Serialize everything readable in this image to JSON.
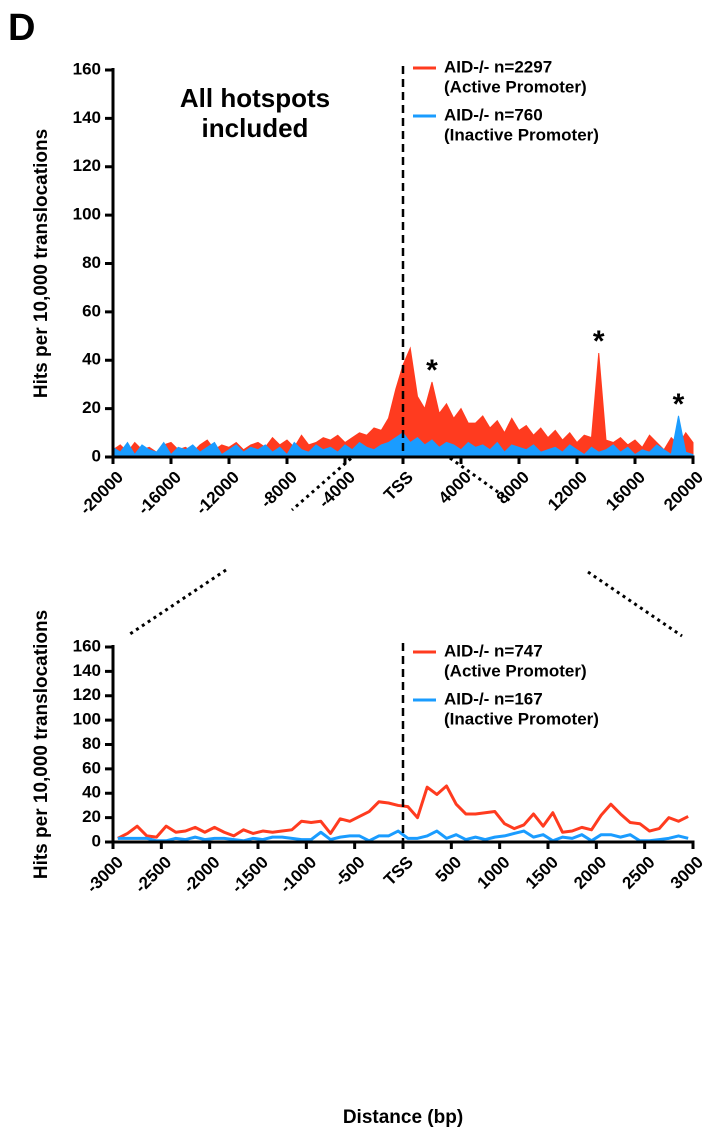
{
  "chart_data": [
    {
      "type": "area",
      "panel": "D",
      "annotation": [
        "All hotspots",
        "included"
      ],
      "ylabel": "Hits per 10,000 translocations",
      "x": [
        -20000,
        -19500,
        -19000,
        -18500,
        -18000,
        -17500,
        -17000,
        -16500,
        -16000,
        -15500,
        -15000,
        -14500,
        -14000,
        -13500,
        -13000,
        -12500,
        -12000,
        -11500,
        -11000,
        -10500,
        -10000,
        -9500,
        -9000,
        -8500,
        -8000,
        -7500,
        -7000,
        -6500,
        -6000,
        -5500,
        -5000,
        -4500,
        -4000,
        -3500,
        -3000,
        -2500,
        -2000,
        -1500,
        -1000,
        -500,
        0,
        500,
        1000,
        1500,
        2000,
        2500,
        3000,
        3500,
        4000,
        4500,
        5000,
        5500,
        6000,
        6500,
        7000,
        7500,
        8000,
        8500,
        9000,
        9500,
        10000,
        10500,
        11000,
        11500,
        12000,
        12500,
        13000,
        13500,
        14000,
        14500,
        15000,
        15500,
        16000,
        16500,
        17000,
        17500,
        18000,
        18500,
        19000,
        19500,
        20000
      ],
      "series": [
        {
          "name": [
            "AID-/- n=2297",
            "(Active Promoter)"
          ],
          "color": "#ff3b1f",
          "values": [
            3,
            5,
            2,
            6,
            3,
            4,
            2,
            5,
            6,
            3,
            4,
            2,
            5,
            7,
            3,
            5,
            4,
            6,
            3,
            5,
            6,
            4,
            8,
            5,
            7,
            4,
            9,
            5,
            6,
            8,
            7,
            9,
            6,
            8,
            10,
            9,
            12,
            11,
            16,
            28,
            38,
            45,
            25,
            20,
            31,
            18,
            22,
            16,
            20,
            14,
            14,
            17,
            12,
            15,
            10,
            16,
            11,
            13,
            9,
            12,
            8,
            11,
            7,
            10,
            6,
            9,
            8,
            43,
            7,
            6,
            8,
            5,
            7,
            4,
            9,
            6,
            3,
            8,
            5,
            10,
            6
          ]
        },
        {
          "name": [
            "AID-/- n=760",
            "(Inactive Promoter)"
          ],
          "color": "#1a9cff",
          "values": [
            4,
            2,
            6,
            1,
            5,
            3,
            2,
            6,
            1,
            4,
            3,
            5,
            2,
            4,
            6,
            1,
            3,
            5,
            2,
            4,
            3,
            5,
            2,
            4,
            1,
            6,
            3,
            2,
            5,
            3,
            4,
            2,
            5,
            3,
            6,
            4,
            3,
            5,
            6,
            8,
            10,
            6,
            8,
            5,
            7,
            4,
            6,
            5,
            3,
            6,
            4,
            5,
            3,
            6,
            2,
            5,
            4,
            3,
            5,
            2,
            3,
            4,
            2,
            5,
            3,
            1,
            4,
            2,
            3,
            5,
            2,
            4,
            1,
            3,
            2,
            5,
            3,
            1,
            17,
            2,
            1
          ]
        }
      ],
      "marks": [
        {
          "text": "*",
          "x": 2000,
          "y": 31
        },
        {
          "text": "*",
          "x": 13500,
          "y": 43
        },
        {
          "text": "*",
          "x": 19000,
          "y": 17
        }
      ],
      "vline": 0,
      "xlim": [
        -20000,
        20000
      ],
      "xticks": [
        -20000,
        -16000,
        -12000,
        -8000,
        -4000,
        {
          "value": 0,
          "label": "TSS"
        },
        4000,
        8000,
        12000,
        16000,
        20000
      ],
      "ylim": [
        0,
        160
      ],
      "yticks": [
        0,
        20,
        40,
        60,
        80,
        100,
        120,
        140,
        160
      ]
    },
    {
      "type": "line",
      "ylabel": "Hits per 10,000 translocations",
      "xlabel": "Distance (bp)",
      "x": [
        -2950,
        -2850,
        -2750,
        -2650,
        -2550,
        -2450,
        -2350,
        -2250,
        -2150,
        -2050,
        -1950,
        -1850,
        -1750,
        -1650,
        -1550,
        -1450,
        -1350,
        -1250,
        -1150,
        -1050,
        -950,
        -850,
        -750,
        -650,
        -550,
        -450,
        -350,
        -250,
        -150,
        -50,
        50,
        150,
        250,
        350,
        450,
        550,
        650,
        750,
        850,
        950,
        1050,
        1150,
        1250,
        1350,
        1450,
        1550,
        1650,
        1750,
        1850,
        1950,
        2050,
        2150,
        2250,
        2350,
        2450,
        2550,
        2650,
        2750,
        2850,
        2950
      ],
      "series": [
        {
          "name": [
            "AID-/- n=747",
            "(Active Promoter)"
          ],
          "color": "#ff3b1f",
          "values": [
            3,
            7,
            13,
            5,
            4,
            13,
            8,
            9,
            12,
            8,
            12,
            8,
            5,
            10,
            7,
            9,
            8,
            9,
            10,
            17,
            16,
            17,
            7,
            19,
            17,
            21,
            25,
            33,
            32,
            30,
            29,
            20,
            45,
            39,
            46,
            31,
            23,
            23,
            24,
            25,
            15,
            11,
            14,
            23,
            13,
            24,
            8,
            9,
            12,
            10,
            22,
            31,
            23,
            16,
            15,
            9,
            11,
            20,
            17,
            21
          ]
        },
        {
          "name": [
            "AID-/- n=167",
            "(Inactive Promoter)"
          ],
          "color": "#1a9cff",
          "values": [
            3,
            3,
            3,
            3,
            1,
            1,
            3,
            2,
            4,
            2,
            3,
            3,
            2,
            1,
            3,
            2,
            4,
            4,
            3,
            2,
            2,
            8,
            2,
            4,
            5,
            5,
            1,
            5,
            5,
            9,
            3,
            3,
            5,
            9,
            3,
            6,
            2,
            4,
            2,
            4,
            5,
            7,
            9,
            4,
            6,
            1,
            4,
            3,
            6,
            1,
            6,
            6,
            4,
            6,
            1,
            1,
            2,
            3,
            5,
            3
          ]
        }
      ],
      "vline": 0,
      "xlim": [
        -3000,
        3000
      ],
      "xticks": [
        -3000,
        -2500,
        -2000,
        -1500,
        -1000,
        -500,
        {
          "value": 0,
          "label": "TSS"
        },
        500,
        1000,
        1500,
        2000,
        2500,
        3000
      ],
      "ylim": [
        0,
        160
      ],
      "yticks": [
        0,
        20,
        40,
        60,
        80,
        100,
        120,
        140,
        160
      ]
    }
  ]
}
